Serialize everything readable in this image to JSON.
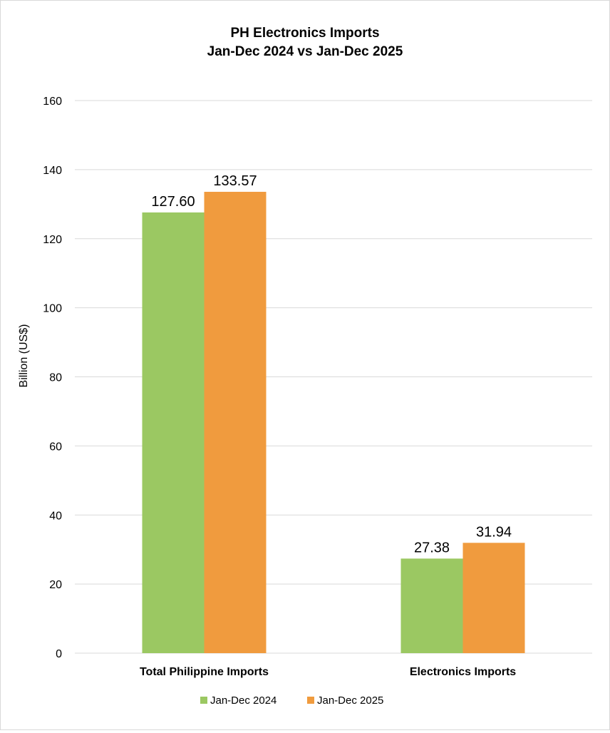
{
  "chart_data": {
    "type": "bar",
    "title": "PH Electronics Imports",
    "subtitle": "Jan-Dec 2024 vs Jan-Dec 2025",
    "ylabel": "Billion (US$)",
    "xlabel": "",
    "ylim": [
      0,
      160
    ],
    "yticks": [
      0,
      20,
      40,
      60,
      80,
      100,
      120,
      140,
      160
    ],
    "categories": [
      "Total Philippine Imports",
      "Electronics Imports"
    ],
    "series": [
      {
        "name": "Jan-Dec 2024",
        "color": "#9bc862",
        "values": [
          127.6,
          27.38
        ],
        "labels": [
          "127.60",
          "27.38"
        ]
      },
      {
        "name": "Jan-Dec 2025",
        "color": "#f09b3e",
        "values": [
          133.57,
          31.94
        ],
        "labels": [
          "133.57",
          "31.94"
        ]
      }
    ],
    "grid": true,
    "legend": "bottom"
  }
}
